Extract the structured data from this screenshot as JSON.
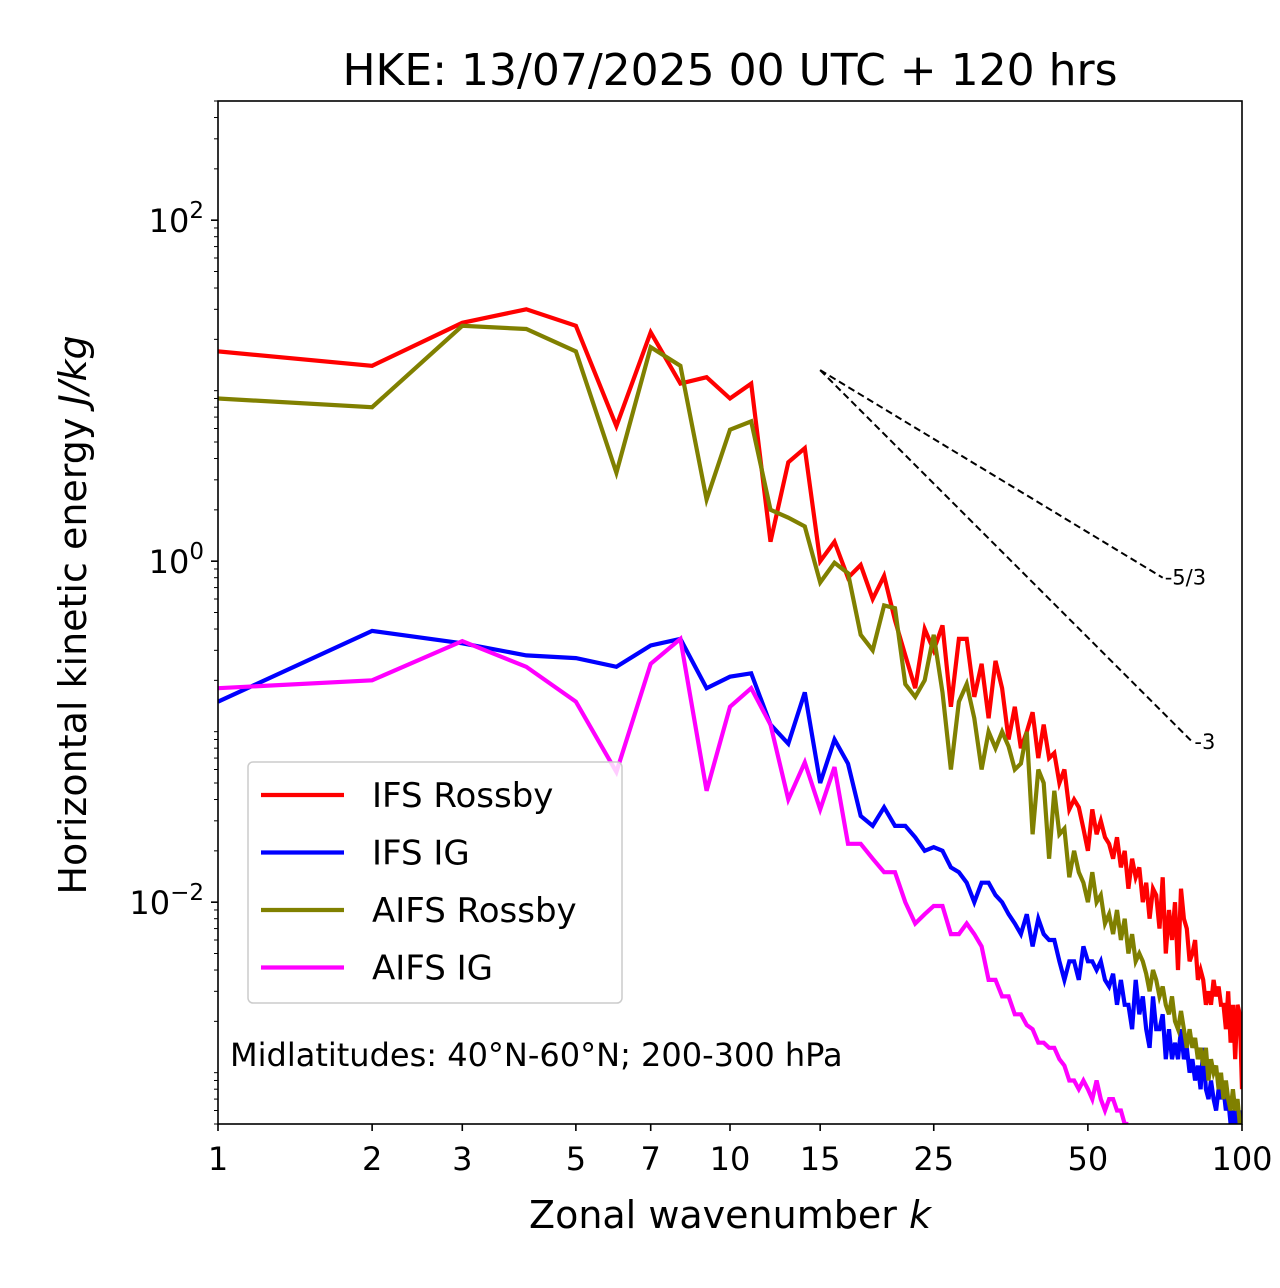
{
  "chart_data": {
    "type": "line",
    "title": "HKE: 13/07/2025 00 UTC + 120 hrs",
    "xlabel": "Zonal wavenumber",
    "xlabel_var": "k",
    "ylabel": "Horizontal kinetic energy",
    "ylabel_unit": "J/kg",
    "xscale": "log",
    "yscale": "log",
    "xlim": [
      1,
      100
    ],
    "ylim": [
      0.0005,
      500
    ],
    "xticks": [
      {
        "value": 1,
        "label": "1"
      },
      {
        "value": 2,
        "label": "2"
      },
      {
        "value": 3,
        "label": "3"
      },
      {
        "value": 5,
        "label": "5"
      },
      {
        "value": 7,
        "label": "7"
      },
      {
        "value": 10,
        "label": "10"
      },
      {
        "value": 15,
        "label": "15"
      },
      {
        "value": 25,
        "label": "25"
      },
      {
        "value": 50,
        "label": "50"
      },
      {
        "value": 100,
        "label": "100"
      }
    ],
    "yticks": [
      {
        "value": 0.01,
        "base": "10",
        "exp": "−2"
      },
      {
        "value": 1,
        "base": "10",
        "exp": "0"
      },
      {
        "value": 100,
        "base": "10",
        "exp": "2"
      }
    ],
    "annotation": "Midlatitudes: 40°N-60°N; 200-300 hPa",
    "legend_position": "lower-left",
    "reference_lines": [
      {
        "label": "-5/3",
        "slope": -1.6667,
        "x": [
          15,
          70
        ],
        "y": [
          13.2,
          0.8
        ]
      },
      {
        "label": "-3",
        "slope": -3,
        "x": [
          15,
          80
        ],
        "y": [
          13.2,
          0.087
        ]
      }
    ],
    "series": [
      {
        "name": "IFS Rossby",
        "color": "#ff0000",
        "x": [
          1,
          2,
          3,
          4,
          5,
          6,
          7,
          8,
          9,
          10,
          11,
          12,
          13,
          14,
          15,
          16,
          17,
          18,
          19,
          20,
          21,
          22,
          23,
          24,
          25,
          26,
          27,
          28,
          29,
          30,
          31,
          32,
          33,
          34,
          35,
          36,
          37,
          38,
          39,
          40,
          41,
          42,
          43,
          44,
          45,
          46,
          47,
          48,
          49,
          50,
          51,
          52,
          53,
          54,
          55,
          56,
          57,
          58,
          59,
          60,
          61,
          62,
          63,
          64,
          65,
          66,
          67,
          68,
          69,
          70,
          71,
          72,
          73,
          74,
          75,
          76,
          77,
          78,
          79,
          80,
          81,
          82,
          83,
          84,
          85,
          86,
          87,
          88,
          89,
          90,
          91,
          92,
          93,
          94,
          95,
          96,
          97,
          98,
          99,
          100
        ],
        "y": [
          17,
          14,
          25,
          30,
          24,
          6.2,
          22,
          11,
          12,
          9,
          11,
          1.3,
          3.8,
          4.6,
          1,
          1.3,
          0.8,
          0.95,
          0.6,
          0.82,
          0.45,
          0.28,
          0.18,
          0.4,
          0.3,
          0.42,
          0.14,
          0.35,
          0.35,
          0.16,
          0.25,
          0.12,
          0.26,
          0.18,
          0.09,
          0.14,
          0.08,
          0.1,
          0.13,
          0.07,
          0.11,
          0.07,
          0.075,
          0.05,
          0.06,
          0.035,
          0.04,
          0.036,
          0.027,
          0.02,
          0.035,
          0.025,
          0.03,
          0.024,
          0.022,
          0.018,
          0.024,
          0.016,
          0.02,
          0.012,
          0.018,
          0.014,
          0.016,
          0.01,
          0.013,
          0.008,
          0.012,
          0.011,
          0.007,
          0.014,
          0.005,
          0.009,
          0.006,
          0.01,
          0.004,
          0.012,
          0.008,
          0.007,
          0.0045,
          0.005,
          0.006,
          0.0035,
          0.004,
          0.0035,
          0.0025,
          0.003,
          0.0025,
          0.0035,
          0.0028,
          0.0032,
          0.0025,
          0.0025,
          0.0018,
          0.003,
          0.0015,
          0.0025,
          0.0012,
          0.0025,
          0.0022,
          0.0008
        ]
      },
      {
        "name": "IFS IG",
        "color": "#0000ff",
        "x": [
          1,
          2,
          3,
          4,
          5,
          6,
          7,
          8,
          9,
          10,
          11,
          12,
          13,
          14,
          15,
          16,
          17,
          18,
          19,
          20,
          21,
          22,
          23,
          24,
          25,
          26,
          27,
          28,
          29,
          30,
          31,
          32,
          33,
          34,
          35,
          36,
          37,
          38,
          39,
          40,
          41,
          42,
          43,
          44,
          45,
          46,
          47,
          48,
          49,
          50,
          51,
          52,
          53,
          54,
          55,
          56,
          57,
          58,
          59,
          60,
          61,
          62,
          63,
          64,
          65,
          66,
          67,
          68,
          69,
          70,
          71,
          72,
          73,
          74,
          75,
          76,
          77,
          78,
          79,
          80,
          81,
          82,
          83,
          84,
          85,
          86,
          87,
          88,
          89,
          90,
          91,
          92,
          93,
          94,
          95,
          96,
          97,
          98,
          99,
          100
        ],
        "y": [
          0.15,
          0.39,
          0.33,
          0.28,
          0.27,
          0.24,
          0.32,
          0.35,
          0.18,
          0.21,
          0.22,
          0.11,
          0.085,
          0.17,
          0.05,
          0.09,
          0.065,
          0.032,
          0.028,
          0.036,
          0.028,
          0.028,
          0.024,
          0.02,
          0.021,
          0.02,
          0.016,
          0.015,
          0.013,
          0.01,
          0.013,
          0.013,
          0.011,
          0.01,
          0.0085,
          0.0075,
          0.0065,
          0.0085,
          0.0055,
          0.008,
          0.0065,
          0.006,
          0.006,
          0.0045,
          0.0035,
          0.0045,
          0.0045,
          0.0035,
          0.0055,
          0.0045,
          0.0045,
          0.004,
          0.0045,
          0.0035,
          0.0032,
          0.0038,
          0.0025,
          0.0035,
          0.0025,
          0.0025,
          0.0018,
          0.0035,
          0.0022,
          0.0028,
          0.0018,
          0.0014,
          0.0028,
          0.0018,
          0.0018,
          0.0022,
          0.0012,
          0.0018,
          0.0012,
          0.0015,
          0.0012,
          0.0018,
          0.0012,
          0.0014,
          0.001,
          0.0012,
          0.0009,
          0.0011,
          0.0008,
          0.0014,
          0.0008,
          0.0007,
          0.0009,
          0.0007,
          0.0006,
          0.0008,
          0.0007,
          0.0008,
          0.0006,
          0.0007,
          0.0005,
          0.0006,
          0.0005,
          0.0006,
          0.0005,
          0.0006
        ]
      },
      {
        "name": "AIFS Rossby",
        "color": "#808000",
        "x": [
          1,
          2,
          3,
          4,
          5,
          6,
          7,
          8,
          9,
          10,
          11,
          12,
          13,
          14,
          15,
          16,
          17,
          18,
          19,
          20,
          21,
          22,
          23,
          24,
          25,
          26,
          27,
          28,
          29,
          30,
          31,
          32,
          33,
          34,
          35,
          36,
          37,
          38,
          39,
          40,
          41,
          42,
          43,
          44,
          45,
          46,
          47,
          48,
          49,
          50,
          51,
          52,
          53,
          54,
          55,
          56,
          57,
          58,
          59,
          60,
          61,
          62,
          63,
          64,
          65,
          66,
          67,
          68,
          69,
          70,
          71,
          72,
          73,
          74,
          75,
          76,
          77,
          78,
          79,
          80,
          81,
          82,
          83,
          84,
          85,
          86,
          87,
          88,
          89,
          90,
          91,
          92,
          93,
          94,
          95,
          96,
          97,
          98,
          99,
          100
        ],
        "y": [
          9,
          8,
          24,
          23,
          17,
          3.3,
          18,
          14,
          2.3,
          5.9,
          6.6,
          2.0,
          1.8,
          1.6,
          0.75,
          0.98,
          0.85,
          0.37,
          0.3,
          0.55,
          0.53,
          0.19,
          0.16,
          0.2,
          0.37,
          0.17,
          0.06,
          0.15,
          0.19,
          0.12,
          0.06,
          0.1,
          0.08,
          0.1,
          0.082,
          0.06,
          0.065,
          0.1,
          0.025,
          0.06,
          0.05,
          0.018,
          0.045,
          0.025,
          0.027,
          0.014,
          0.02,
          0.015,
          0.013,
          0.01,
          0.015,
          0.01,
          0.011,
          0.0075,
          0.0085,
          0.0065,
          0.009,
          0.006,
          0.008,
          0.005,
          0.0065,
          0.0045,
          0.005,
          0.0045,
          0.0038,
          0.003,
          0.004,
          0.0035,
          0.0028,
          0.0032,
          0.0025,
          0.0022,
          0.0028,
          0.002,
          0.0018,
          0.0023,
          0.0018,
          0.0014,
          0.0018,
          0.0014,
          0.0016,
          0.0012,
          0.0014,
          0.0011,
          0.0014,
          0.0009,
          0.0012,
          0.001,
          0.0011,
          0.0008,
          0.001,
          0.0007,
          0.0009,
          0.0007,
          0.0006,
          0.0008,
          0.0006,
          0.0007,
          0.0005,
          0.0005
        ]
      },
      {
        "name": "AIFS IG",
        "color": "#ff00ff",
        "x": [
          1,
          2,
          3,
          4,
          5,
          6,
          7,
          8,
          9,
          10,
          11,
          12,
          13,
          14,
          15,
          16,
          17,
          18,
          19,
          20,
          21,
          22,
          23,
          24,
          25,
          26,
          27,
          28,
          29,
          30,
          31,
          32,
          33,
          34,
          35,
          36,
          37,
          38,
          39,
          40,
          41,
          42,
          43,
          44,
          45,
          46,
          47,
          48,
          49,
          50,
          51,
          52,
          53,
          54,
          55,
          56,
          57,
          58,
          59,
          60
        ],
        "y": [
          0.18,
          0.2,
          0.34,
          0.24,
          0.15,
          0.058,
          0.25,
          0.35,
          0.045,
          0.14,
          0.18,
          0.11,
          0.04,
          0.066,
          0.035,
          0.062,
          0.022,
          0.022,
          0.018,
          0.015,
          0.015,
          0.01,
          0.0075,
          0.0085,
          0.0095,
          0.0095,
          0.0065,
          0.0065,
          0.0075,
          0.0065,
          0.0055,
          0.0035,
          0.0035,
          0.0028,
          0.0028,
          0.0022,
          0.0022,
          0.0019,
          0.0018,
          0.0015,
          0.0015,
          0.0014,
          0.0014,
          0.0012,
          0.0011,
          0.0009,
          0.0009,
          0.0008,
          0.0009,
          0.0008,
          0.0007,
          0.0009,
          0.0007,
          0.0006,
          0.0007,
          0.0007,
          0.0006,
          0.0006,
          0.0005,
          0.0005
        ]
      }
    ]
  }
}
